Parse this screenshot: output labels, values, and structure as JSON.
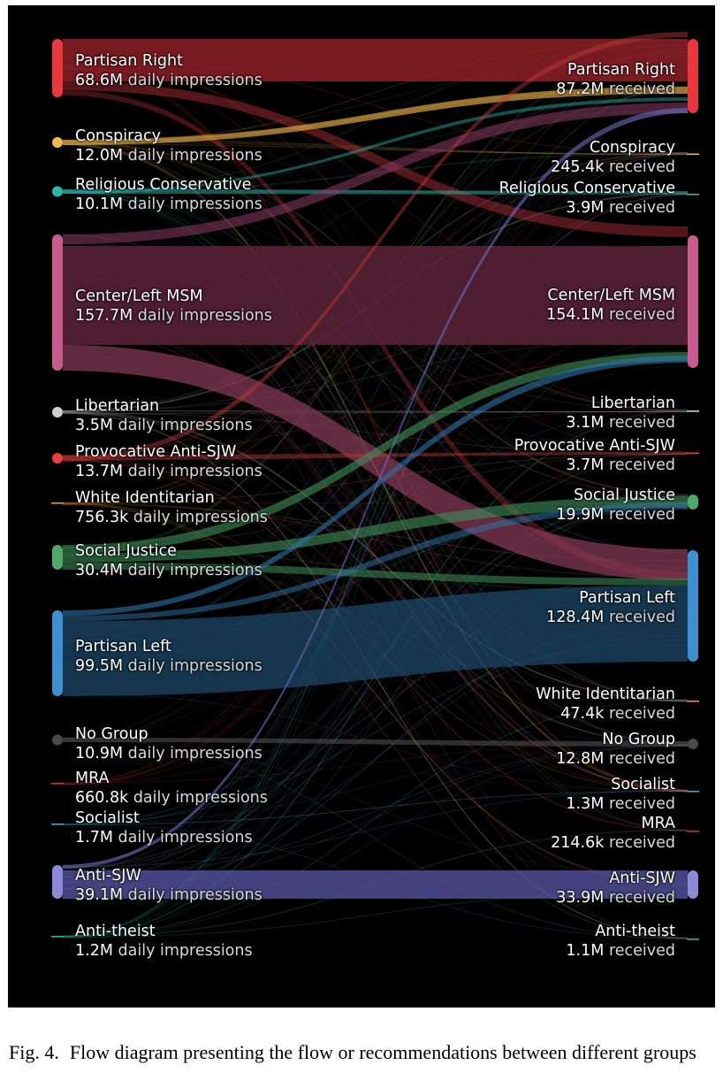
{
  "caption": {
    "fig_number": "Fig. 4.",
    "text": "Flow diagram presenting the flow or recommendations between different groups"
  },
  "left_suffix": "daily impressions",
  "right_suffix": "received",
  "left_nodes": [
    {
      "name": "Partisan Right",
      "value": "68.6M",
      "color": "#e8383d"
    },
    {
      "name": "Conspiracy",
      "value": "12.0M",
      "color": "#f5b94a"
    },
    {
      "name": "Religious Conservative",
      "value": "10.1M",
      "color": "#2bb5ad"
    },
    {
      "name": "Center/Left MSM",
      "value": "157.7M",
      "color": "#c75b8e"
    },
    {
      "name": "Libertarian",
      "value": "3.5M",
      "color": "#cfcfcf"
    },
    {
      "name": "Provocative Anti-SJW",
      "value": "13.7M",
      "color": "#e8403e"
    },
    {
      "name": "White Identitarian",
      "value": "756.3k",
      "color": "#e5952e"
    },
    {
      "name": "Social Justice",
      "value": "30.4M",
      "color": "#4ea86a"
    },
    {
      "name": "Partisan Left",
      "value": "99.5M",
      "color": "#3d8fd0"
    },
    {
      "name": "No Group",
      "value": "10.9M",
      "color": "#4a4a4a"
    },
    {
      "name": "MRA",
      "value": "660.8k",
      "color": "#d8284f"
    },
    {
      "name": "Socialist",
      "value": "1.7M",
      "color": "#3aa8c8"
    },
    {
      "name": "Anti-SJW",
      "value": "39.1M",
      "color": "#8c8ad8"
    },
    {
      "name": "Anti-theist",
      "value": "1.2M",
      "color": "#2bb59a"
    }
  ],
  "right_nodes": [
    {
      "name": "Partisan Right",
      "value": "87.2M",
      "color": "#e8383d"
    },
    {
      "name": "Conspiracy",
      "value": "245.4k",
      "color": "#f5b94a"
    },
    {
      "name": "Religious Conservative",
      "value": "3.9M",
      "color": "#2bb5ad"
    },
    {
      "name": "Center/Left MSM",
      "value": "154.1M",
      "color": "#c75b8e"
    },
    {
      "name": "Libertarian",
      "value": "3.1M",
      "color": "#cfcfcf"
    },
    {
      "name": "Provocative Anti-SJW",
      "value": "3.7M",
      "color": "#e8403e"
    },
    {
      "name": "Social Justice",
      "value": "19.9M",
      "color": "#4ea86a"
    },
    {
      "name": "Partisan Left",
      "value": "128.4M",
      "color": "#3d8fd0"
    },
    {
      "name": "White Identitarian",
      "value": "47.4k",
      "color": "#e5952e"
    },
    {
      "name": "No Group",
      "value": "12.8M",
      "color": "#4a4a4a"
    },
    {
      "name": "Socialist",
      "value": "1.3M",
      "color": "#3aa8c8"
    },
    {
      "name": "MRA",
      "value": "214.6k",
      "color": "#d8284f"
    },
    {
      "name": "Anti-SJW",
      "value": "33.9M",
      "color": "#8c8ad8"
    },
    {
      "name": "Anti-theist",
      "value": "1.1M",
      "color": "#2bb59a"
    }
  ]
}
